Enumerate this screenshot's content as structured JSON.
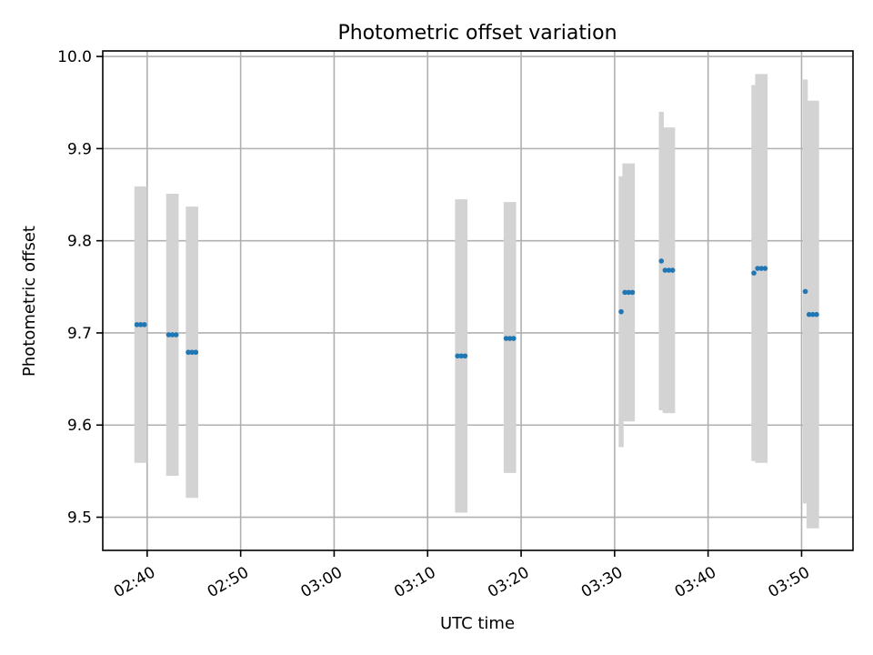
{
  "chart_data": {
    "type": "scatter",
    "title": "Photometric offset variation",
    "xlabel": "UTC time",
    "ylabel": "Photometric offset",
    "x_ticks": [
      "02:40",
      "02:50",
      "03:00",
      "03:10",
      "03:20",
      "03:30",
      "03:40",
      "03:50"
    ],
    "y_ticks": [
      "9.5",
      "9.6",
      "9.7",
      "9.8",
      "9.9",
      "10.0"
    ],
    "xlim": [
      "02:35:15",
      "03:55:30"
    ],
    "ylim": [
      9.464,
      10.006
    ],
    "grid": true,
    "colors": {
      "points": "#1f77b4",
      "error_bars": "#d3d3d3",
      "grid": "#b0b0b0"
    },
    "points": [
      {
        "t": "02:38:54",
        "y": 9.709,
        "lo": 9.559,
        "hi": 9.859
      },
      {
        "t": "02:39:18",
        "y": 9.709,
        "lo": 9.559,
        "hi": 9.859
      },
      {
        "t": "02:39:42",
        "y": 9.709,
        "lo": 9.559,
        "hi": 9.859
      },
      {
        "t": "02:42:18",
        "y": 9.698,
        "lo": 9.545,
        "hi": 9.851
      },
      {
        "t": "02:42:42",
        "y": 9.698,
        "lo": 9.545,
        "hi": 9.851
      },
      {
        "t": "02:43:06",
        "y": 9.698,
        "lo": 9.545,
        "hi": 9.851
      },
      {
        "t": "02:44:24",
        "y": 9.679,
        "lo": 9.521,
        "hi": 9.837
      },
      {
        "t": "02:44:48",
        "y": 9.679,
        "lo": 9.521,
        "hi": 9.837
      },
      {
        "t": "02:45:12",
        "y": 9.679,
        "lo": 9.521,
        "hi": 9.837
      },
      {
        "t": "03:13:12",
        "y": 9.675,
        "lo": 9.505,
        "hi": 9.845
      },
      {
        "t": "03:13:36",
        "y": 9.675,
        "lo": 9.505,
        "hi": 9.845
      },
      {
        "t": "03:14:00",
        "y": 9.675,
        "lo": 9.505,
        "hi": 9.845
      },
      {
        "t": "03:18:24",
        "y": 9.694,
        "lo": 9.548,
        "hi": 9.842
      },
      {
        "t": "03:18:48",
        "y": 9.694,
        "lo": 9.548,
        "hi": 9.842
      },
      {
        "t": "03:19:12",
        "y": 9.694,
        "lo": 9.548,
        "hi": 9.842
      },
      {
        "t": "03:30:42",
        "y": 9.723,
        "lo": 9.576,
        "hi": 9.87
      },
      {
        "t": "03:31:06",
        "y": 9.744,
        "lo": 9.604,
        "hi": 9.884
      },
      {
        "t": "03:31:30",
        "y": 9.744,
        "lo": 9.604,
        "hi": 9.884
      },
      {
        "t": "03:31:54",
        "y": 9.744,
        "lo": 9.604,
        "hi": 9.884
      },
      {
        "t": "03:35:00",
        "y": 9.778,
        "lo": 9.616,
        "hi": 9.94
      },
      {
        "t": "03:35:24",
        "y": 9.768,
        "lo": 9.613,
        "hi": 9.923
      },
      {
        "t": "03:35:48",
        "y": 9.768,
        "lo": 9.613,
        "hi": 9.923
      },
      {
        "t": "03:36:12",
        "y": 9.768,
        "lo": 9.613,
        "hi": 9.923
      },
      {
        "t": "03:44:54",
        "y": 9.765,
        "lo": 9.561,
        "hi": 9.969
      },
      {
        "t": "03:45:18",
        "y": 9.77,
        "lo": 9.559,
        "hi": 9.981
      },
      {
        "t": "03:45:42",
        "y": 9.77,
        "lo": 9.559,
        "hi": 9.981
      },
      {
        "t": "03:46:06",
        "y": 9.77,
        "lo": 9.559,
        "hi": 9.981
      },
      {
        "t": "03:50:24",
        "y": 9.745,
        "lo": 9.515,
        "hi": 9.975
      },
      {
        "t": "03:50:48",
        "y": 9.72,
        "lo": 9.488,
        "hi": 9.952
      },
      {
        "t": "03:51:12",
        "y": 9.72,
        "lo": 9.488,
        "hi": 9.952
      },
      {
        "t": "03:51:36",
        "y": 9.72,
        "lo": 9.488,
        "hi": 9.952
      }
    ]
  }
}
